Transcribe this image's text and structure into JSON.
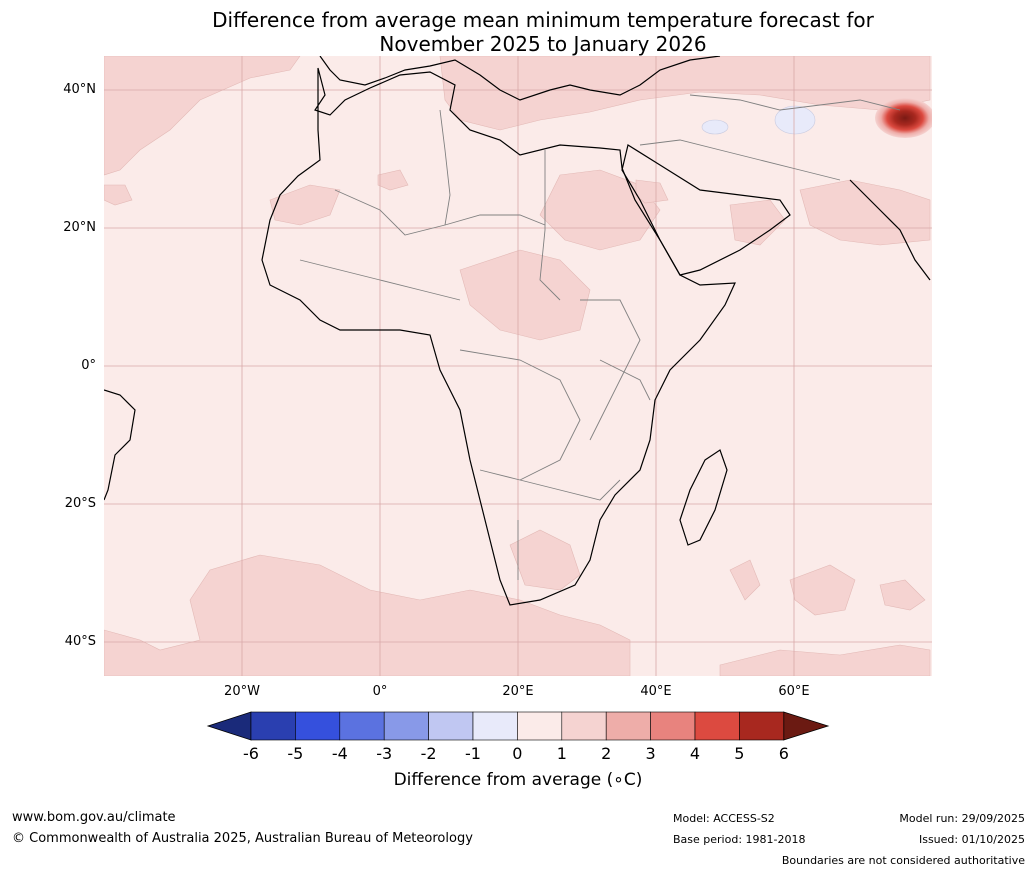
{
  "title": {
    "line1": "Difference from average mean minimum temperature forecast for",
    "line2": "November 2025 to January 2026"
  },
  "axes": {
    "lat_labels": [
      "40°N",
      "20°N",
      "0°",
      "20°S",
      "40°S"
    ],
    "lon_labels": [
      "20°W",
      "0°",
      "20°E",
      "40°E",
      "60°E"
    ]
  },
  "colorbar": {
    "label": "Difference from average (∘C)",
    "ticks": [
      "-6",
      "-5",
      "-4",
      "-3",
      "-2",
      "-1",
      "0",
      "1",
      "2",
      "3",
      "4",
      "5",
      "6"
    ],
    "colors": [
      "#1a2a7a",
      "#2a3fb0",
      "#3550dd",
      "#5b72e0",
      "#8899e8",
      "#c0c7f2",
      "#e8eafa",
      "#fbebe9",
      "#f5d3d1",
      "#eeada9",
      "#e8837e",
      "#dc4a40",
      "#a8281f",
      "#6b1a12"
    ]
  },
  "map_colors": {
    "base": "#fbebe9",
    "warm1": "#f5d3d1",
    "cool1": "#e8eafa",
    "hot": "#a8281f",
    "grid": "#d8a8a8",
    "coast": "#000000",
    "border": "#808080"
  },
  "footer": {
    "website": "www.bom.gov.au/climate",
    "copyright": "© Commonwealth of Australia 2025, Australian Bureau of Meteorology",
    "model": "Model: ACCESS-S2",
    "base_period": "Base period: 1981-2018",
    "model_run": "Model run: 29/09/2025",
    "issued": "Issued: 01/10/2025",
    "disclaimer": "Boundaries are not considered authoritative"
  }
}
